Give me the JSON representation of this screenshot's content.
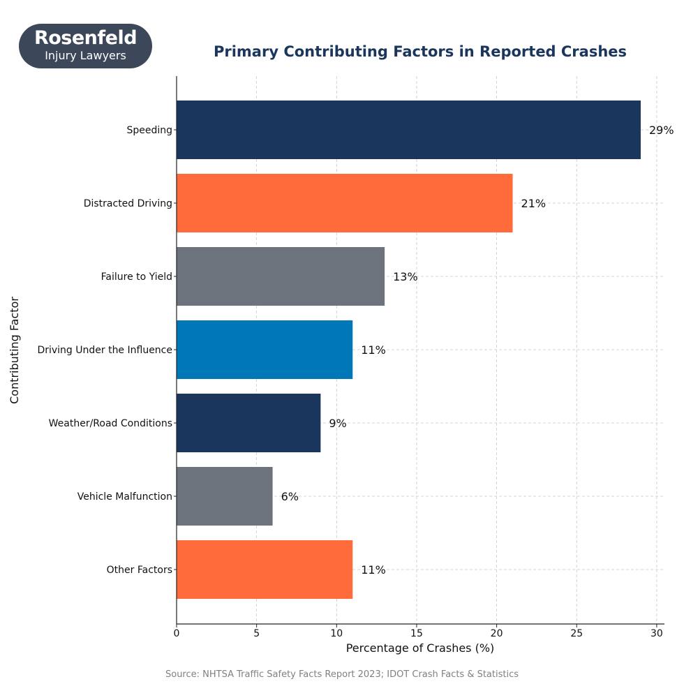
{
  "logo": {
    "brand": "Rosenfeld",
    "sub": "Injury Lawyers"
  },
  "colors": {
    "navy": "#1a365d",
    "orange": "#ff6b3b",
    "gray": "#6c737d",
    "blue": "#0077b6",
    "title": "#1a365d",
    "source": "#808080"
  },
  "chart_data": {
    "type": "bar",
    "orientation": "horizontal",
    "title": "Primary Contributing Factors in Reported Crashes",
    "xlabel": "Percentage of Crashes (%)",
    "ylabel": "Contributing Factor",
    "xlim": [
      0,
      30.5
    ],
    "xticks": [
      "0",
      "5",
      "10",
      "15",
      "20",
      "25",
      "30"
    ],
    "grid": true,
    "categories": [
      "Speeding",
      "Distracted Driving",
      "Failure to Yield",
      "Driving Under the Influence",
      "Weather/Road Conditions",
      "Vehicle Malfunction",
      "Other Factors"
    ],
    "values": [
      29,
      21,
      13,
      11,
      9,
      6,
      11
    ],
    "value_labels": [
      "29%",
      "21%",
      "13%",
      "11%",
      "9%",
      "6%",
      "11%"
    ],
    "bar_colors": [
      "#1a365d",
      "#ff6b3b",
      "#6c737d",
      "#0077b6",
      "#1a365d",
      "#6c737d",
      "#ff6b3b"
    ],
    "source": "Source: NHTSA Traffic Safety Facts Report 2023; IDOT Crash Facts & Statistics"
  }
}
